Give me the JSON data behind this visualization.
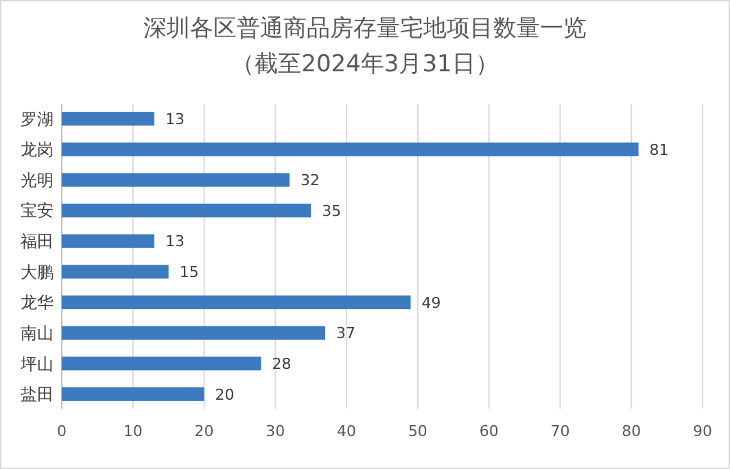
{
  "chart_data": {
    "type": "bar",
    "orientation": "horizontal",
    "title": "深圳各区普通商品房存量宅地项目数量一览",
    "subtitle": "（截至2024年3月31日）",
    "categories": [
      "罗湖",
      "龙岗",
      "光明",
      "宝安",
      "福田",
      "大鹏",
      "龙华",
      "南山",
      "坪山",
      "盐田"
    ],
    "values": [
      13,
      81,
      32,
      35,
      13,
      15,
      49,
      37,
      28,
      20
    ],
    "color": "#3d7abf",
    "xlim": [
      0,
      90
    ],
    "xticks": [
      0,
      10,
      20,
      30,
      40,
      50,
      60,
      70,
      80,
      90
    ],
    "grid": "x",
    "data_labels": true
  }
}
